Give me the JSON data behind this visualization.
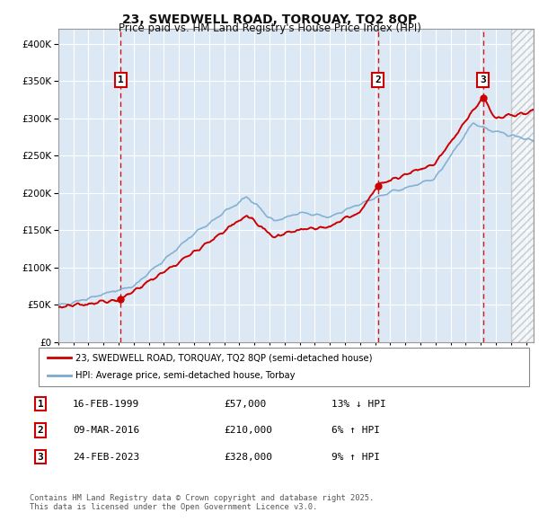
{
  "title1": "23, SWEDWELL ROAD, TORQUAY, TQ2 8QP",
  "title2": "Price paid vs. HM Land Registry's House Price Index (HPI)",
  "legend_line1": "23, SWEDWELL ROAD, TORQUAY, TQ2 8QP (semi-detached house)",
  "legend_line2": "HPI: Average price, semi-detached house, Torbay",
  "transactions": [
    {
      "num": 1,
      "date": "16-FEB-1999",
      "price": 57000,
      "hpi_note": "13% ↓ HPI",
      "year": 1999.12
    },
    {
      "num": 2,
      "date": "09-MAR-2016",
      "price": 210000,
      "hpi_note": "6% ↑ HPI",
      "year": 2016.19
    },
    {
      "num": 3,
      "date": "24-FEB-2023",
      "price": 328000,
      "hpi_note": "9% ↑ HPI",
      "year": 2023.15
    }
  ],
  "footnote1": "Contains HM Land Registry data © Crown copyright and database right 2025.",
  "footnote2": "This data is licensed under the Open Government Licence v3.0.",
  "price_color": "#cc0000",
  "hpi_color": "#7aabcf",
  "bg_color": "#dce9f5",
  "grid_color": "#ffffff",
  "ylim": [
    0,
    420000
  ],
  "yticks": [
    0,
    50000,
    100000,
    150000,
    200000,
    250000,
    300000,
    350000,
    400000
  ],
  "xmin": 1995.0,
  "xmax": 2026.5
}
